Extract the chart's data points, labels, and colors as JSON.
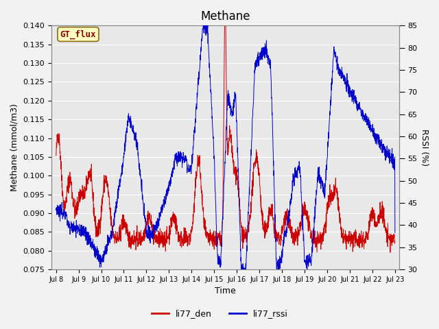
{
  "title": "Methane",
  "xlabel": "Time",
  "ylabel_left": "Methane (mmol/m3)",
  "ylabel_right": "RSSI (%)",
  "ylim_left": [
    0.075,
    0.14
  ],
  "ylim_right": [
    30,
    85
  ],
  "yticks_left": [
    0.075,
    0.08,
    0.085,
    0.09,
    0.095,
    0.1,
    0.105,
    0.11,
    0.115,
    0.12,
    0.125,
    0.13,
    0.135,
    0.14
  ],
  "yticks_right": [
    30,
    35,
    40,
    45,
    50,
    55,
    60,
    65,
    70,
    75,
    80,
    85
  ],
  "xtick_labels": [
    "Jul 8",
    "Jul 9",
    "Jul 10",
    "Jul 11",
    "Jul 12",
    "Jul 13",
    "Jul 14",
    "Jul 15",
    "Jul 16",
    "Jul 17",
    "Jul 18",
    "Jul 19",
    "Jul 20",
    "Jul 21",
    "Jul 22",
    "Jul 23"
  ],
  "annotation_text": "GT_flux",
  "annotation_color": "#8B0000",
  "annotation_bg": "#FFFFC0",
  "annotation_border": "#8B6914",
  "line_red_color": "#CC0000",
  "line_blue_color": "#0000CC",
  "legend_red": "li77_den",
  "legend_blue": "li77_rssi",
  "background_color": "#E8E8E8",
  "fig_bg_color": "#F2F2F2",
  "grid_color": "#FFFFFF",
  "title_fontsize": 12,
  "axis_fontsize": 9,
  "tick_fontsize": 8
}
